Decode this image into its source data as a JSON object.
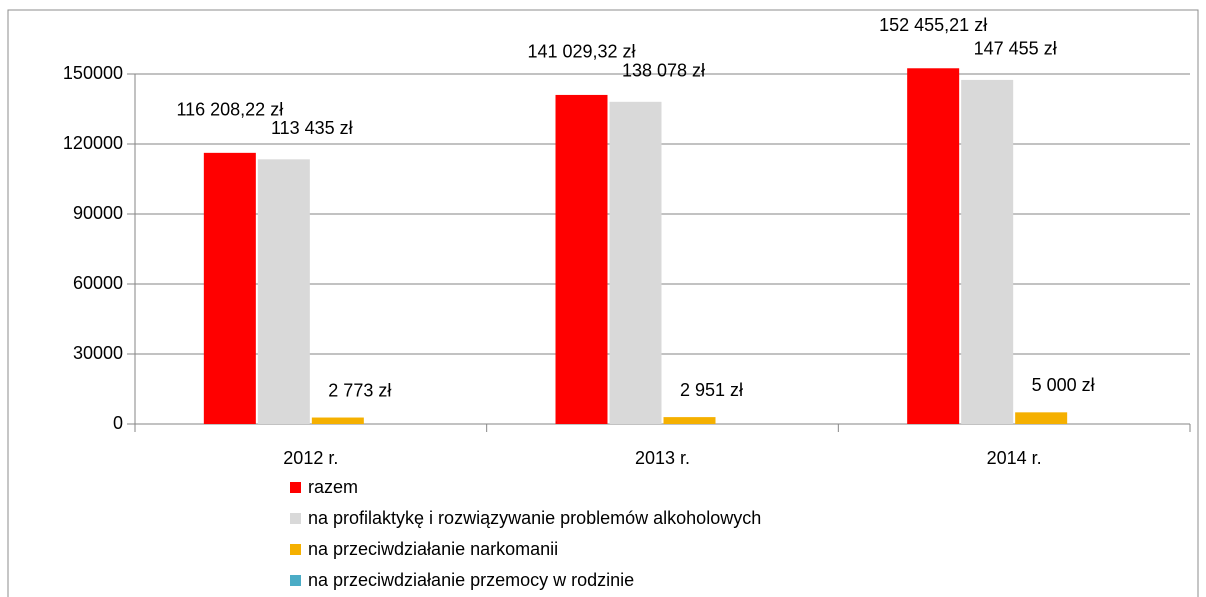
{
  "chart_data": {
    "type": "bar",
    "categories": [
      "2012 r.",
      "2013 r.",
      "2014 r."
    ],
    "series": [
      {
        "name": "razem",
        "color": "#ff0000",
        "values": [
          116208.22,
          141029.32,
          152455.21
        ],
        "value_labels": [
          "116 208,22 zł",
          "141 029,32 zł",
          "152 455,21 zł"
        ]
      },
      {
        "name": "na profilaktykę i rozwiązywanie problemów alkoholowych",
        "color": "#d9d9d9",
        "values": [
          113435,
          138078,
          147455
        ],
        "value_labels": [
          "113 435 zł",
          "138 078 zł",
          "147 455 zł"
        ]
      },
      {
        "name": "na przeciwdziałanie narkomanii",
        "color": "#f5b000",
        "values": [
          2773,
          2951,
          5000
        ],
        "value_labels": [
          "2 773 zł",
          "2 951 zł",
          "5 000 zł"
        ]
      },
      {
        "name": "na przeciwdziałanie przemocy w rodzinie",
        "color": "#4bacc6",
        "values": [
          null,
          null,
          null
        ]
      }
    ],
    "ylim": [
      0,
      150000
    ],
    "yticks": [
      0,
      30000,
      60000,
      90000,
      120000,
      150000
    ],
    "grid": true,
    "legend": "bottom"
  }
}
